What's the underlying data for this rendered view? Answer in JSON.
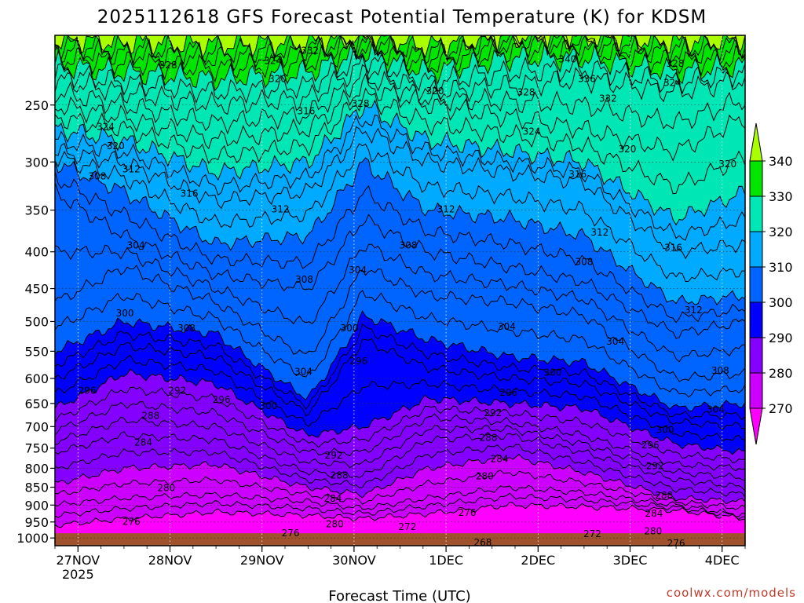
{
  "title": "2025112618 GFS Forecast Potential Temperature (K) for KDSM",
  "xlabel": "Forecast Time (UTC)",
  "credit": "coolwx.com/models",
  "chart_data": {
    "type": "heatmap",
    "title": "2025112618 GFS Forecast Potential Temperature (K) for KDSM",
    "xlabel": "Forecast Time (UTC)",
    "ylabel": "",
    "x_ticks": [
      "27NOV",
      "28NOV",
      "29NOV",
      "30NOV",
      "1DEC",
      "2DEC",
      "3DEC",
      "4DEC"
    ],
    "x_year_label": "2025",
    "x_range_days": [
      -0.25,
      7.25
    ],
    "y_ticks": [
      250,
      300,
      350,
      400,
      450,
      500,
      550,
      600,
      650,
      700,
      750,
      800,
      850,
      900,
      950,
      1000
    ],
    "y_range_hPa": [
      200,
      1025
    ],
    "y_scale": "log-pressure",
    "grid": true,
    "colorbar": {
      "ticks": [
        270,
        280,
        290,
        300,
        310,
        320,
        330,
        340
      ],
      "levels": [
        260,
        270,
        280,
        290,
        300,
        310,
        320,
        330,
        340,
        350
      ],
      "colors": [
        "#ff00ff",
        "#cc00ff",
        "#8400ff",
        "#0000ff",
        "#0064ff",
        "#00aaff",
        "#00e6b4",
        "#00e600",
        "#aaff00",
        "#ffff00"
      ]
    },
    "contour_interval": 4,
    "day_x": [
      0,
      1,
      2,
      3,
      4,
      5,
      6,
      7
    ],
    "isentropes": [
      {
        "theta": 272,
        "p": [
          960,
          940,
          920,
          930,
          940,
          925,
          900,
          905,
          915,
          940
        ]
      },
      {
        "theta": 276,
        "p": [
          900,
          880,
          870,
          890,
          910,
          880,
          850,
          865,
          900,
          930
        ]
      },
      {
        "theta": 280,
        "p": [
          840,
          800,
          790,
          850,
          870,
          800,
          770,
          810,
          880,
          890
        ]
      },
      {
        "theta": 284,
        "p": [
          760,
          720,
          730,
          810,
          820,
          730,
          720,
          760,
          830,
          850
        ]
      },
      {
        "theta": 288,
        "p": [
          710,
          650,
          670,
          760,
          760,
          680,
          690,
          720,
          790,
          800
        ]
      },
      {
        "theta": 292,
        "p": [
          660,
          590,
          610,
          720,
          700,
          640,
          650,
          660,
          740,
          760
        ]
      },
      {
        "theta": 296,
        "p": [
          600,
          540,
          560,
          670,
          530,
          580,
          600,
          610,
          690,
          700
        ]
      },
      {
        "theta": 300,
        "p": [
          550,
          500,
          520,
          640,
          490,
          530,
          560,
          570,
          660,
          650
        ]
      },
      {
        "theta": 304,
        "p": [
          470,
          420,
          470,
          560,
          420,
          460,
          470,
          490,
          600,
          590
        ]
      },
      {
        "theta": 308,
        "p": [
          330,
          380,
          430,
          450,
          360,
          400,
          420,
          440,
          520,
          500
        ]
      },
      {
        "theta": 312,
        "p": [
          300,
          330,
          390,
          380,
          300,
          350,
          360,
          380,
          470,
          460
        ]
      },
      {
        "theta": 316,
        "p": [
          290,
          300,
          340,
          330,
          270,
          300,
          310,
          320,
          400,
          390
        ]
      },
      {
        "theta": 320,
        "p": [
          270,
          280,
          310,
          300,
          250,
          280,
          290,
          300,
          360,
          330
        ]
      },
      {
        "theta": 324,
        "p": [
          250,
          260,
          280,
          270,
          235,
          250,
          260,
          270,
          290,
          260
        ]
      },
      {
        "theta": 328,
        "p": [
          230,
          240,
          250,
          245,
          220,
          240,
          235,
          230,
          240,
          230
        ]
      },
      {
        "theta": 332,
        "p": [
          220,
          225,
          230,
          225,
          210,
          225,
          215,
          215,
          225,
          220
        ]
      },
      {
        "theta": 336,
        "p": [
          210,
          212,
          215,
          212,
          205,
          215,
          205,
          205,
          212,
          210
        ]
      },
      {
        "theta": 340,
        "p": [
          203,
          205,
          206,
          205,
          201,
          207,
          201,
          201,
          205,
          203
        ]
      }
    ],
    "isentrope_x": [
      -0.25,
      0.5,
      1.5,
      2.5,
      3.1,
      3.8,
      4.7,
      5.5,
      6.5,
      7.25
    ],
    "contour_labels": [
      {
        "text": "332",
        "x": 2.52,
        "p": 210
      },
      {
        "text": "328",
        "x": 0.98,
        "p": 220
      },
      {
        "text": "324",
        "x": 2.12,
        "p": 217
      },
      {
        "text": "320",
        "x": 2.17,
        "p": 230
      },
      {
        "text": "328",
        "x": 3.07,
        "p": 249
      },
      {
        "text": "320",
        "x": 3.88,
        "p": 239
      },
      {
        "text": "316",
        "x": 2.48,
        "p": 255
      },
      {
        "text": "340",
        "x": 5.32,
        "p": 216
      },
      {
        "text": "336",
        "x": 5.53,
        "p": 230
      },
      {
        "text": "332",
        "x": 5.76,
        "p": 245
      },
      {
        "text": "328",
        "x": 4.87,
        "p": 240
      },
      {
        "text": "324",
        "x": 4.93,
        "p": 272
      },
      {
        "text": "328",
        "x": 6.49,
        "p": 219
      },
      {
        "text": "324",
        "x": 6.46,
        "p": 233
      },
      {
        "text": "320",
        "x": 5.97,
        "p": 288
      },
      {
        "text": "316",
        "x": 5.43,
        "p": 312
      },
      {
        "text": "320",
        "x": 7.06,
        "p": 302
      },
      {
        "text": "324",
        "x": 0.3,
        "p": 268
      },
      {
        "text": "320",
        "x": 0.41,
        "p": 285
      },
      {
        "text": "312",
        "x": 0.58,
        "p": 307
      },
      {
        "text": "308",
        "x": 0.21,
        "p": 314
      },
      {
        "text": "316",
        "x": 1.21,
        "p": 332
      },
      {
        "text": "312",
        "x": 2.2,
        "p": 349
      },
      {
        "text": "312",
        "x": 4.0,
        "p": 349
      },
      {
        "text": "312",
        "x": 5.67,
        "p": 376
      },
      {
        "text": "316",
        "x": 6.47,
        "p": 395
      },
      {
        "text": "304",
        "x": 0.63,
        "p": 392
      },
      {
        "text": "308",
        "x": 3.59,
        "p": 392
      },
      {
        "text": "304",
        "x": 3.04,
        "p": 424
      },
      {
        "text": "308",
        "x": 2.46,
        "p": 437
      },
      {
        "text": "308",
        "x": 5.5,
        "p": 413
      },
      {
        "text": "312",
        "x": 6.69,
        "p": 482
      },
      {
        "text": "300",
        "x": 0.51,
        "p": 487
      },
      {
        "text": "308",
        "x": 1.18,
        "p": 511
      },
      {
        "text": "304",
        "x": 4.66,
        "p": 508
      },
      {
        "text": "304",
        "x": 5.84,
        "p": 533
      },
      {
        "text": "300",
        "x": 2.95,
        "p": 511
      },
      {
        "text": "296",
        "x": 3.05,
        "p": 568
      },
      {
        "text": "304",
        "x": 2.45,
        "p": 587
      },
      {
        "text": "308",
        "x": 6.98,
        "p": 585
      },
      {
        "text": "300",
        "x": 5.16,
        "p": 589
      },
      {
        "text": "296",
        "x": 0.1,
        "p": 624
      },
      {
        "text": "292",
        "x": 1.08,
        "p": 624
      },
      {
        "text": "296",
        "x": 1.56,
        "p": 642
      },
      {
        "text": "300",
        "x": 2.07,
        "p": 655
      },
      {
        "text": "296",
        "x": 4.68,
        "p": 628
      },
      {
        "text": "292",
        "x": 4.51,
        "p": 670
      },
      {
        "text": "304",
        "x": 6.93,
        "p": 663
      },
      {
        "text": "288",
        "x": 0.79,
        "p": 676
      },
      {
        "text": "300",
        "x": 6.38,
        "p": 707
      },
      {
        "text": "288",
        "x": 4.46,
        "p": 725
      },
      {
        "text": "284",
        "x": 0.71,
        "p": 736
      },
      {
        "text": "296",
        "x": 6.22,
        "p": 743
      },
      {
        "text": "292",
        "x": 2.78,
        "p": 768
      },
      {
        "text": "284",
        "x": 4.58,
        "p": 776
      },
      {
        "text": "292",
        "x": 6.27,
        "p": 794
      },
      {
        "text": "288",
        "x": 2.84,
        "p": 818
      },
      {
        "text": "280",
        "x": 4.42,
        "p": 821
      },
      {
        "text": "280",
        "x": 0.96,
        "p": 852
      },
      {
        "text": "288",
        "x": 6.37,
        "p": 873
      },
      {
        "text": "284",
        "x": 2.77,
        "p": 881
      },
      {
        "text": "276",
        "x": 4.23,
        "p": 922
      },
      {
        "text": "284",
        "x": 6.26,
        "p": 925
      },
      {
        "text": "276",
        "x": 0.58,
        "p": 949
      },
      {
        "text": "280",
        "x": 2.79,
        "p": 956
      },
      {
        "text": "272",
        "x": 3.58,
        "p": 965
      },
      {
        "text": "272",
        "x": 5.59,
        "p": 987
      },
      {
        "text": "280",
        "x": 6.25,
        "p": 978
      },
      {
        "text": "276",
        "x": 2.31,
        "p": 984
      },
      {
        "text": "268",
        "x": 4.4,
        "p": 1015
      },
      {
        "text": "276",
        "x": 6.5,
        "p": 1017
      }
    ],
    "ground_pressure_hPa": 985
  }
}
